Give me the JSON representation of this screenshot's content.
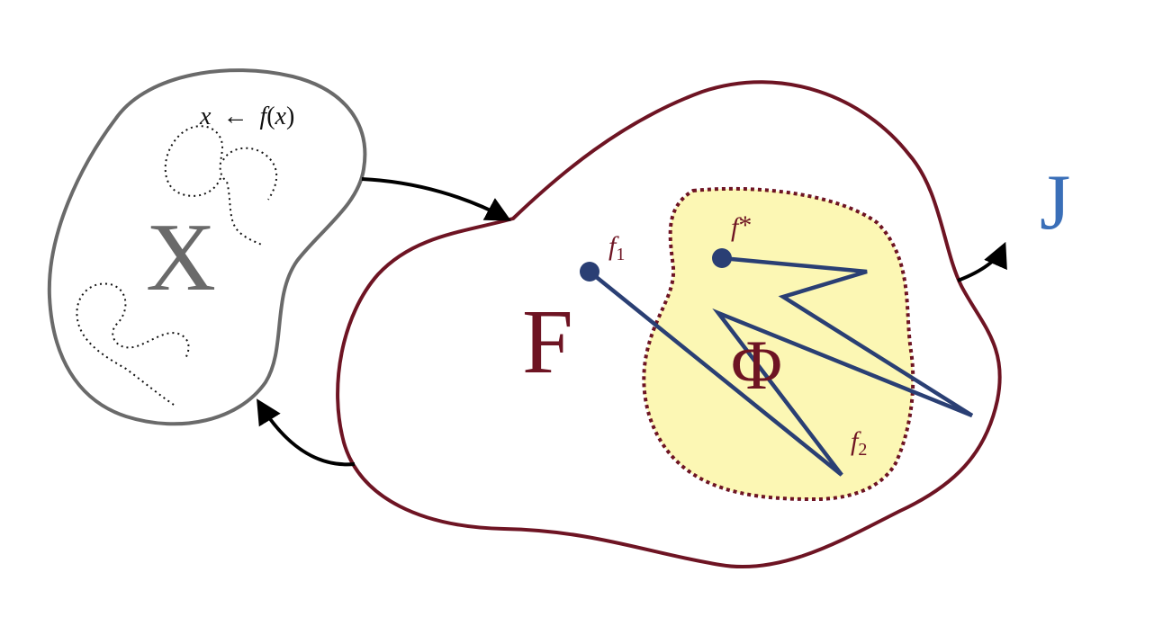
{
  "diagram": {
    "spaces": {
      "X": {
        "label": "X",
        "color": "#6a6a6a"
      },
      "F": {
        "label": "F",
        "color": "#6e1423"
      },
      "Phi": {
        "label": "Φ",
        "color": "#6e1423",
        "fill": "#fcf7b4"
      },
      "J": {
        "label": "J",
        "color": "#3a6fb8"
      }
    },
    "iteration_rule": {
      "lhs": "x",
      "arrow": "←",
      "rhs_fn": "f",
      "rhs_open": "(",
      "rhs_var": "x",
      "rhs_close": ")"
    },
    "points": {
      "f1": {
        "base": "f",
        "sub": "1"
      },
      "f_star": {
        "base": "f",
        "sup": "*"
      },
      "f2": {
        "base": "f",
        "sub": "2"
      }
    },
    "colors": {
      "path": "#2a3f74",
      "arrow": "#000000",
      "x_outline": "#6a6a6a",
      "f_outline": "#6e1423"
    }
  }
}
